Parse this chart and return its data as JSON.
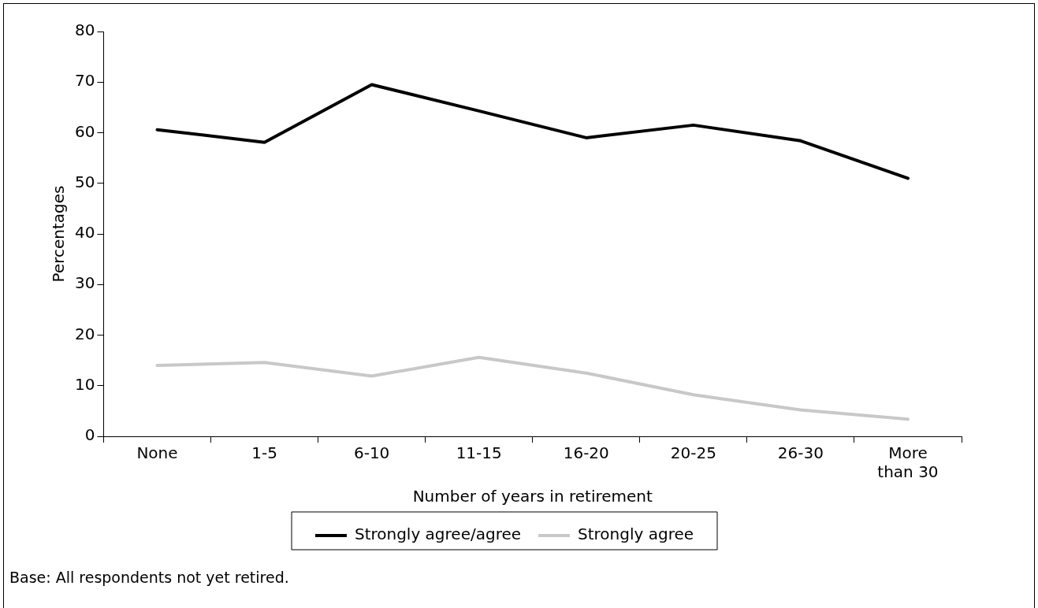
{
  "chart_data": {
    "type": "line",
    "categories": [
      "None",
      "1-5",
      "6-10",
      "11-15",
      "16-20",
      "20-25",
      "26-30",
      "More than 30"
    ],
    "series": [
      {
        "name": "Strongly agree/agree",
        "color": "#000000",
        "values": [
          60.6,
          58.1,
          69.5,
          64.3,
          59.0,
          61.5,
          58.4,
          51.0
        ]
      },
      {
        "name": "Strongly agree",
        "color": "#c8c8c8",
        "values": [
          14.0,
          14.6,
          11.9,
          15.6,
          12.5,
          8.2,
          5.2,
          3.4
        ]
      }
    ],
    "xlabel": "Number of years in retirement",
    "ylabel": "Percentages",
    "ylim": [
      0,
      80
    ],
    "yticks": [
      0,
      10,
      20,
      30,
      40,
      50,
      60,
      70,
      80
    ],
    "grid": false,
    "legend": "bottom",
    "marker": "none",
    "line_style": "solid",
    "annotations": [
      "Base: All respondents not yet retired."
    ]
  }
}
